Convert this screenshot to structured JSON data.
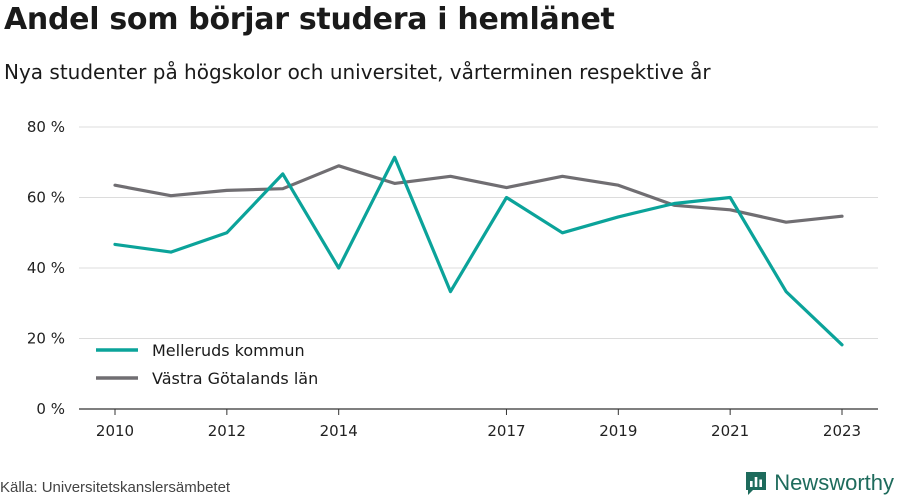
{
  "header": {
    "title": "Andel som börjar studera i hemlänet",
    "subtitle": "Nya studenter på högskolor och universitet, vårterminen respektive år"
  },
  "footer": {
    "source": "Källa: Universitetskanslersämbetet",
    "brand": "Newsworthy",
    "brand_icon": "newsworthy-logo-icon",
    "brand_color": "#1e6b5c"
  },
  "chart_data": {
    "type": "line",
    "title": "Andel som börjar studera i hemlänet",
    "subtitle": "Nya studenter på högskolor och universitet, vårterminen respektive år",
    "xlabel": "",
    "ylabel": "",
    "x": [
      2010,
      2011,
      2012,
      2013,
      2014,
      2015,
      2016,
      2017,
      2018,
      2019,
      2020,
      2021,
      2022,
      2023
    ],
    "x_tick_labels": [
      "2010",
      "2012",
      "2014",
      "2017",
      "2019",
      "2021",
      "2023"
    ],
    "ylim": [
      0,
      80
    ],
    "y_ticks": [
      0,
      20,
      40,
      60,
      80
    ],
    "y_tick_labels": [
      "0 %",
      "20 %",
      "40 %",
      "60 %",
      "80 %"
    ],
    "grid": "horizontal",
    "legend_position": "bottom-left",
    "series": [
      {
        "name": "Melleruds kommun",
        "color": "#0ba39a",
        "values": [
          46.7,
          44.5,
          50.0,
          66.7,
          40.0,
          71.4,
          33.3,
          60.0,
          50.0,
          54.5,
          58.3,
          60.0,
          33.3,
          18.2
        ]
      },
      {
        "name": "Västra Götalands län",
        "color": "#706e72",
        "values": [
          63.5,
          60.5,
          62.0,
          62.5,
          69.0,
          64.0,
          66.0,
          62.8,
          66.0,
          63.5,
          57.8,
          56.5,
          53.0,
          54.7
        ]
      }
    ]
  }
}
